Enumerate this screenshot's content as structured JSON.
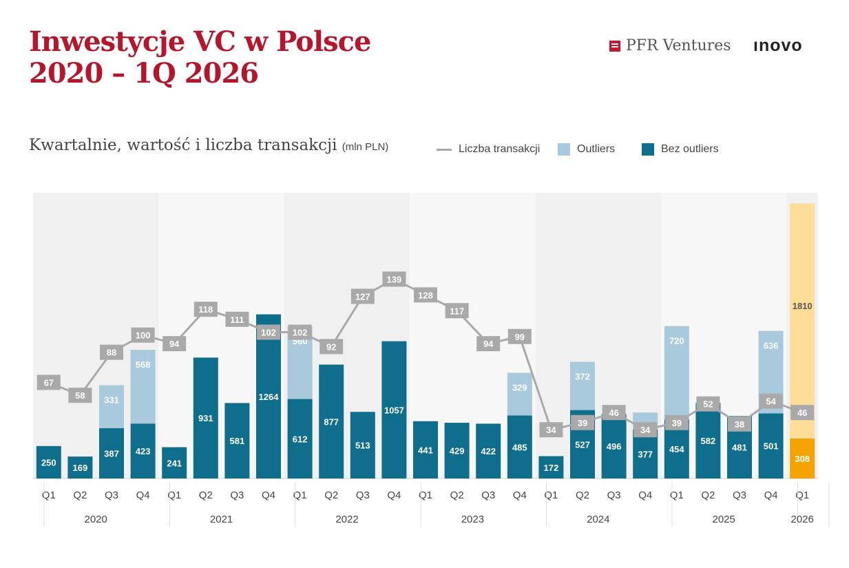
{
  "header": {
    "title_line1": "Inwestycje VC w Polsce",
    "title_line2": "2020 – 1Q 2026",
    "logo_pfr": "PFR Ventures",
    "logo_inovo": "ınovo"
  },
  "subtitle": {
    "main": "Kwartalnie, wartość i liczba transakcji",
    "unit": "(mln PLN)"
  },
  "legend": [
    {
      "label": "Liczba transakcji",
      "color": "#a9a9a9"
    },
    {
      "label": "Outliers",
      "color": "#a9c9dc"
    },
    {
      "label": "Bez outliers",
      "color": "#0f6e8c"
    }
  ],
  "colors": {
    "base": "#0f6e8c",
    "outliers": "#a9c9dc",
    "base_highlight": "#f5a300",
    "outliers_highlight": "#fedd98",
    "line": "#a9a9a9",
    "label_box": "#a9a9a9",
    "band_dark": "#f0f0f0",
    "band_light": "#f7f7f7"
  },
  "chart_data": {
    "type": "bar",
    "title": "Kwartalnie, wartość i liczba transakcji",
    "ylabel": "mln PLN",
    "stacked": true,
    "ylim": [
      0,
      2200
    ],
    "quarters": [
      "Q1",
      "Q2",
      "Q3",
      "Q4",
      "Q1",
      "Q2",
      "Q3",
      "Q4",
      "Q1",
      "Q2",
      "Q3",
      "Q4",
      "Q1",
      "Q2",
      "Q3",
      "Q4",
      "Q1",
      "Q2",
      "Q3",
      "Q4",
      "Q1",
      "Q2",
      "Q3",
      "Q4",
      "Q1"
    ],
    "years": [
      {
        "label": "2020",
        "count": 4
      },
      {
        "label": "2021",
        "count": 4
      },
      {
        "label": "2022",
        "count": 4
      },
      {
        "label": "2023",
        "count": 4
      },
      {
        "label": "2024",
        "count": 4
      },
      {
        "label": "2025",
        "count": 4
      },
      {
        "label": "2026",
        "count": 1
      }
    ],
    "series": [
      {
        "name": "Bez outliers",
        "values": [
          250,
          169,
          387,
          423,
          241,
          931,
          581,
          1264,
          612,
          877,
          513,
          1057,
          441,
          429,
          422,
          485,
          172,
          527,
          496,
          377,
          454,
          582,
          481,
          501,
          308
        ]
      },
      {
        "name": "Outliers",
        "values": [
          null,
          null,
          331,
          568,
          null,
          null,
          null,
          null,
          560,
          null,
          null,
          null,
          null,
          null,
          null,
          329,
          null,
          372,
          null,
          131,
          720,
          null,
          null,
          636,
          1810
        ]
      }
    ],
    "line": {
      "name": "Liczba transakcji",
      "ylim": [
        0,
        180
      ],
      "values": [
        67,
        58,
        88,
        100,
        94,
        118,
        111,
        102,
        102,
        92,
        127,
        139,
        128,
        117,
        94,
        99,
        34,
        39,
        46,
        34,
        39,
        52,
        38,
        54,
        46
      ]
    },
    "highlight_last": true
  }
}
